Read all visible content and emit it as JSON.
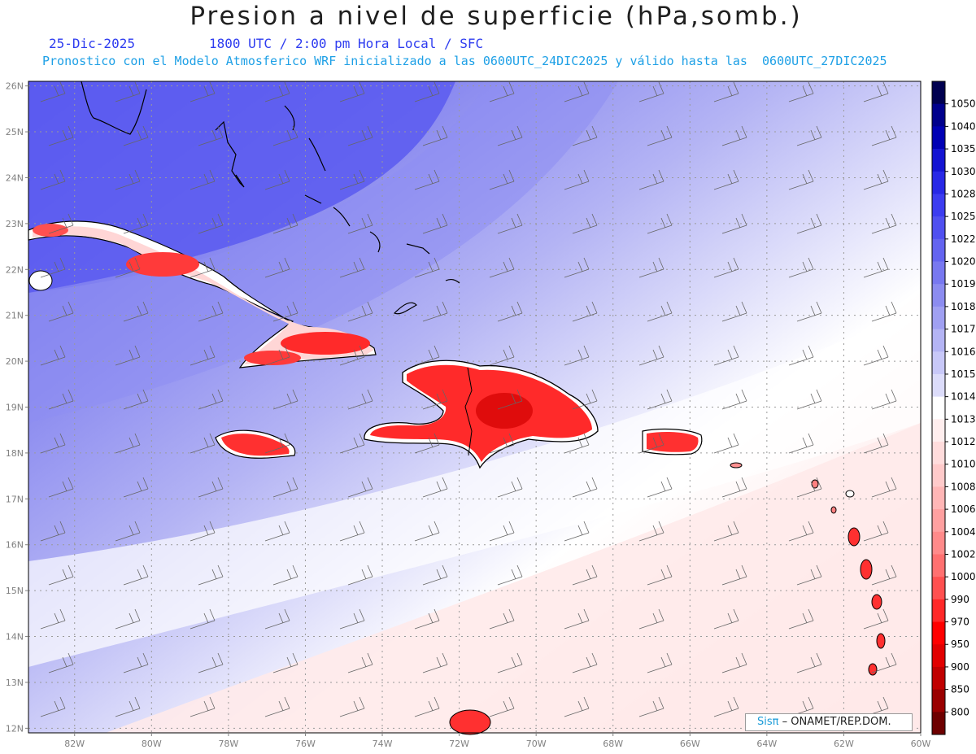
{
  "header": {
    "title": "Presion a nivel de superficie (hPa,somb.)",
    "date": "25-Dic-2025",
    "time_line": "1800 UTC / 2:00 pm Hora Local / SFC",
    "info_line": "Pronostico con el Modelo Atmosferico WRF inicializado a las 0600UTC_24DIC2025 y válido hasta las  0600UTC_27DIC2025"
  },
  "axes": {
    "lat_labels": [
      "26N",
      "25N",
      "24N",
      "23N",
      "22N",
      "21N",
      "20N",
      "19N",
      "18N",
      "17N",
      "16N",
      "15N",
      "14N",
      "13N",
      "12N"
    ],
    "lat_values": [
      26,
      25,
      24,
      23,
      22,
      21,
      20,
      19,
      18,
      17,
      16,
      15,
      14,
      13,
      12
    ],
    "lon_labels": [
      "82W",
      "80W",
      "78W",
      "76W",
      "74W",
      "72W",
      "70W",
      "68W",
      "66W",
      "64W",
      "62W",
      "60W"
    ],
    "lon_values": [
      -82,
      -80,
      -78,
      -76,
      -74,
      -72,
      -70,
      -68,
      -66,
      -64,
      -62,
      -60
    ],
    "lon_range": [
      -83.2,
      -60.0
    ],
    "lat_range": [
      11.9,
      26.1
    ],
    "grid": "dotted"
  },
  "colorbar": {
    "levels": [
      "1050",
      "1040",
      "1035",
      "1030",
      "1028",
      "1025",
      "1022",
      "1020",
      "1019",
      "1018",
      "1017",
      "1016",
      "1015",
      "1014",
      "1013",
      "1012",
      "1010",
      "1008",
      "1006",
      "1004",
      "1002",
      "1000",
      "990",
      "970",
      "950",
      "900",
      "850",
      "800"
    ],
    "colors": [
      "#000050",
      "#00008c",
      "#0000b4",
      "#1414d2",
      "#2828e6",
      "#3c3cf0",
      "#5050f0",
      "#6464f0",
      "#7878f0",
      "#8c8cf0",
      "#a0a0f2",
      "#b4b4f4",
      "#c8c8f8",
      "#dcdcfa",
      "#ffffff",
      "#ffeeee",
      "#ffdcdc",
      "#ffcaca",
      "#ffb6b6",
      "#ffa0a0",
      "#ff8a8a",
      "#ff7070",
      "#ff5050",
      "#ff2828",
      "#ff0000",
      "#e10000",
      "#c00000",
      "#9a0000",
      "#6e0000"
    ]
  },
  "credit": {
    "sis": "Sisπ",
    "org": "– ONAMET/REP.DOM."
  }
}
